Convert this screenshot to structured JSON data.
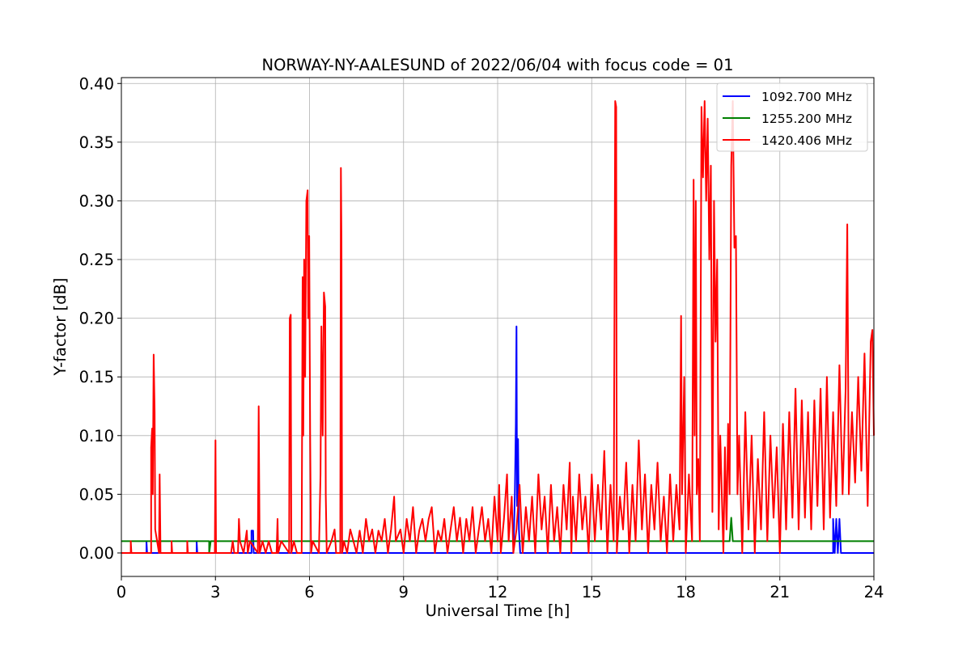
{
  "chart_data": {
    "type": "line",
    "title": "NORWAY-NY-AALESUND of 2022/06/04 with focus code = 01",
    "xlabel": "Universal Time [h]",
    "ylabel": "Y-factor [dB]",
    "xlim": [
      0,
      24
    ],
    "ylim": [
      -0.02,
      0.405
    ],
    "x_ticks": [
      0,
      3,
      6,
      9,
      12,
      15,
      18,
      21,
      24
    ],
    "x_tick_labels": [
      "0",
      "3",
      "6",
      "9",
      "12",
      "15",
      "18",
      "21",
      "24"
    ],
    "y_ticks": [
      0.0,
      0.05,
      0.1,
      0.15,
      0.2,
      0.25,
      0.3,
      0.35,
      0.4
    ],
    "y_tick_labels": [
      "0.00",
      "0.05",
      "0.10",
      "0.15",
      "0.20",
      "0.25",
      "0.30",
      "0.35",
      "0.40"
    ],
    "grid": true,
    "legend_position": "top-right",
    "series": [
      {
        "name": "1092.700 MHz",
        "color": "#0000ff",
        "points": [
          [
            0,
            0
          ],
          [
            0.8,
            0
          ],
          [
            0.8,
            0.01
          ],
          [
            0.82,
            0
          ],
          [
            1.2,
            0
          ],
          [
            1.2,
            0.01
          ],
          [
            1.22,
            0
          ],
          [
            2.4,
            0
          ],
          [
            2.4,
            0.01
          ],
          [
            2.42,
            0
          ],
          [
            4.15,
            0
          ],
          [
            4.15,
            0.019
          ],
          [
            4.2,
            0.019
          ],
          [
            4.22,
            0
          ],
          [
            12.5,
            0
          ],
          [
            12.55,
            0.05
          ],
          [
            12.58,
            0.11
          ],
          [
            12.6,
            0.193
          ],
          [
            12.62,
            0.04
          ],
          [
            12.65,
            0.097
          ],
          [
            12.68,
            0.02
          ],
          [
            12.72,
            0
          ],
          [
            22.7,
            0
          ],
          [
            22.7,
            0.029
          ],
          [
            22.75,
            0
          ],
          [
            22.8,
            0.029
          ],
          [
            22.85,
            0
          ],
          [
            22.9,
            0.029
          ],
          [
            22.95,
            0
          ],
          [
            24,
            0
          ]
        ]
      },
      {
        "name": "1255.200 MHz",
        "color": "#008000",
        "points": [
          [
            0,
            0.01
          ],
          [
            2.8,
            0.01
          ],
          [
            2.8,
            0
          ],
          [
            2.85,
            0.01
          ],
          [
            19.4,
            0.01
          ],
          [
            19.45,
            0.03
          ],
          [
            19.5,
            0.01
          ],
          [
            24,
            0.01
          ]
        ]
      },
      {
        "name": "1420.406 MHz",
        "color": "#ff0000",
        "points": [
          [
            0,
            0
          ],
          [
            0.3,
            0
          ],
          [
            0.3,
            0.01
          ],
          [
            0.32,
            0
          ],
          [
            0.95,
            0
          ],
          [
            0.95,
            0.09
          ],
          [
            0.98,
            0.106
          ],
          [
            1.0,
            0.05
          ],
          [
            1.03,
            0.169
          ],
          [
            1.06,
            0.12
          ],
          [
            1.08,
            0.02
          ],
          [
            1.2,
            0
          ],
          [
            1.22,
            0.067
          ],
          [
            1.25,
            0
          ],
          [
            1.6,
            0
          ],
          [
            1.6,
            0.01
          ],
          [
            1.62,
            0
          ],
          [
            2.1,
            0
          ],
          [
            2.1,
            0.01
          ],
          [
            2.12,
            0
          ],
          [
            2.98,
            0
          ],
          [
            3.0,
            0.096
          ],
          [
            3.02,
            0
          ],
          [
            3.5,
            0
          ],
          [
            3.55,
            0.01
          ],
          [
            3.6,
            0
          ],
          [
            3.72,
            0
          ],
          [
            3.75,
            0.029
          ],
          [
            3.78,
            0.01
          ],
          [
            3.9,
            0
          ],
          [
            4.0,
            0.019
          ],
          [
            4.03,
            0
          ],
          [
            4.1,
            0.01
          ],
          [
            4.35,
            0
          ],
          [
            4.38,
            0.125
          ],
          [
            4.41,
            0
          ],
          [
            4.5,
            0.01
          ],
          [
            4.6,
            0
          ],
          [
            4.7,
            0.01
          ],
          [
            4.8,
            0
          ],
          [
            4.95,
            0
          ],
          [
            4.98,
            0.029
          ],
          [
            5.0,
            0
          ],
          [
            5.1,
            0.01
          ],
          [
            5.35,
            0
          ],
          [
            5.37,
            0.2
          ],
          [
            5.4,
            0.203
          ],
          [
            5.42,
            0
          ],
          [
            5.5,
            0.01
          ],
          [
            5.6,
            0
          ],
          [
            5.75,
            0
          ],
          [
            5.78,
            0.235
          ],
          [
            5.8,
            0.1
          ],
          [
            5.83,
            0.25
          ],
          [
            5.86,
            0.15
          ],
          [
            5.9,
            0.3
          ],
          [
            5.94,
            0.309
          ],
          [
            5.96,
            0.2
          ],
          [
            5.99,
            0.27
          ],
          [
            6.02,
            0.1
          ],
          [
            6.05,
            0
          ],
          [
            6.1,
            0.01
          ],
          [
            6.3,
            0
          ],
          [
            6.35,
            0.067
          ],
          [
            6.38,
            0.193
          ],
          [
            6.42,
            0.1
          ],
          [
            6.46,
            0.222
          ],
          [
            6.5,
            0.21
          ],
          [
            6.52,
            0.05
          ],
          [
            6.55,
            0
          ],
          [
            6.7,
            0.01
          ],
          [
            6.8,
            0.02
          ],
          [
            6.85,
            0
          ],
          [
            6.98,
            0
          ],
          [
            7.0,
            0.328
          ],
          [
            7.02,
            0.265
          ],
          [
            7.04,
            0
          ],
          [
            7.1,
            0.01
          ],
          [
            7.2,
            0
          ],
          [
            7.3,
            0.02
          ],
          [
            7.4,
            0.01
          ],
          [
            7.5,
            0
          ],
          [
            7.6,
            0.019
          ],
          [
            7.7,
            0
          ],
          [
            7.8,
            0.029
          ],
          [
            7.9,
            0.01
          ],
          [
            8.0,
            0.02
          ],
          [
            8.1,
            0
          ],
          [
            8.2,
            0.019
          ],
          [
            8.3,
            0.01
          ],
          [
            8.4,
            0.029
          ],
          [
            8.5,
            0
          ],
          [
            8.6,
            0.02
          ],
          [
            8.7,
            0.048
          ],
          [
            8.75,
            0.01
          ],
          [
            8.9,
            0.02
          ],
          [
            9.0,
            0
          ],
          [
            9.1,
            0.029
          ],
          [
            9.2,
            0.01
          ],
          [
            9.3,
            0.039
          ],
          [
            9.4,
            0
          ],
          [
            9.5,
            0.019
          ],
          [
            9.6,
            0.029
          ],
          [
            9.7,
            0.01
          ],
          [
            9.8,
            0.029
          ],
          [
            9.9,
            0.039
          ],
          [
            10.0,
            0
          ],
          [
            10.1,
            0.019
          ],
          [
            10.2,
            0.01
          ],
          [
            10.3,
            0.029
          ],
          [
            10.4,
            0
          ],
          [
            10.5,
            0.02
          ],
          [
            10.6,
            0.039
          ],
          [
            10.7,
            0.01
          ],
          [
            10.8,
            0.03
          ],
          [
            10.9,
            0
          ],
          [
            11.0,
            0.029
          ],
          [
            11.1,
            0.01
          ],
          [
            11.2,
            0.039
          ],
          [
            11.3,
            0
          ],
          [
            11.4,
            0.02
          ],
          [
            11.5,
            0.039
          ],
          [
            11.6,
            0.01
          ],
          [
            11.7,
            0.029
          ],
          [
            11.8,
            0
          ],
          [
            11.9,
            0.048
          ],
          [
            12.0,
            0.01
          ],
          [
            12.05,
            0.058
          ],
          [
            12.1,
            0
          ],
          [
            12.2,
            0.029
          ],
          [
            12.3,
            0.067
          ],
          [
            12.35,
            0.01
          ],
          [
            12.45,
            0.048
          ],
          [
            12.5,
            0
          ],
          [
            12.6,
            0.02
          ],
          [
            12.7,
            0.058
          ],
          [
            12.8,
            0
          ],
          [
            12.9,
            0.039
          ],
          [
            13.0,
            0.01
          ],
          [
            13.1,
            0.048
          ],
          [
            13.2,
            0
          ],
          [
            13.3,
            0.067
          ],
          [
            13.4,
            0.02
          ],
          [
            13.5,
            0.048
          ],
          [
            13.6,
            0
          ],
          [
            13.7,
            0.058
          ],
          [
            13.8,
            0.01
          ],
          [
            13.9,
            0.039
          ],
          [
            14.0,
            0
          ],
          [
            14.1,
            0.058
          ],
          [
            14.2,
            0.02
          ],
          [
            14.3,
            0.077
          ],
          [
            14.35,
            0
          ],
          [
            14.4,
            0.048
          ],
          [
            14.5,
            0.01
          ],
          [
            14.6,
            0.067
          ],
          [
            14.7,
            0.02
          ],
          [
            14.8,
            0.048
          ],
          [
            14.9,
            0
          ],
          [
            15.0,
            0.067
          ],
          [
            15.1,
            0.01
          ],
          [
            15.2,
            0.058
          ],
          [
            15.3,
            0.02
          ],
          [
            15.4,
            0.087
          ],
          [
            15.5,
            0
          ],
          [
            15.6,
            0.058
          ],
          [
            15.7,
            0.01
          ],
          [
            15.75,
            0.385
          ],
          [
            15.78,
            0.38
          ],
          [
            15.8,
            0
          ],
          [
            15.9,
            0.048
          ],
          [
            16.0,
            0.02
          ],
          [
            16.1,
            0.077
          ],
          [
            16.2,
            0
          ],
          [
            16.3,
            0.058
          ],
          [
            16.4,
            0.01
          ],
          [
            16.5,
            0.096
          ],
          [
            16.6,
            0.02
          ],
          [
            16.7,
            0.067
          ],
          [
            16.8,
            0
          ],
          [
            16.9,
            0.058
          ],
          [
            17.0,
            0.02
          ],
          [
            17.1,
            0.077
          ],
          [
            17.2,
            0.01
          ],
          [
            17.3,
            0.048
          ],
          [
            17.4,
            0
          ],
          [
            17.5,
            0.067
          ],
          [
            17.6,
            0.01
          ],
          [
            17.7,
            0.058
          ],
          [
            17.8,
            0.02
          ],
          [
            17.85,
            0.202
          ],
          [
            17.88,
            0.05
          ],
          [
            17.95,
            0.15
          ],
          [
            18.0,
            0
          ],
          [
            18.1,
            0.067
          ],
          [
            18.2,
            0.01
          ],
          [
            18.25,
            0.318
          ],
          [
            18.28,
            0.1
          ],
          [
            18.32,
            0.3
          ],
          [
            18.35,
            0.05
          ],
          [
            18.4,
            0.08
          ],
          [
            18.45,
            0.01
          ],
          [
            18.5,
            0.38
          ],
          [
            18.55,
            0.32
          ],
          [
            18.6,
            0.385
          ],
          [
            18.65,
            0.3
          ],
          [
            18.7,
            0.37
          ],
          [
            18.75,
            0.25
          ],
          [
            18.8,
            0.33
          ],
          [
            18.85,
            0.035
          ],
          [
            18.9,
            0.3
          ],
          [
            18.95,
            0.18
          ],
          [
            19.0,
            0.25
          ],
          [
            19.05,
            0.02
          ],
          [
            19.1,
            0.1
          ],
          [
            19.2,
            0.0
          ],
          [
            19.25,
            0.09
          ],
          [
            19.3,
            0.02
          ],
          [
            19.35,
            0.11
          ],
          [
            19.4,
            0.05
          ],
          [
            19.45,
            0.33
          ],
          [
            19.5,
            0.385
          ],
          [
            19.55,
            0.26
          ],
          [
            19.6,
            0.27
          ],
          [
            19.65,
            0.05
          ],
          [
            19.7,
            0.1
          ],
          [
            19.8,
            0.0
          ],
          [
            19.9,
            0.12
          ],
          [
            20.0,
            0.02
          ],
          [
            20.1,
            0.1
          ],
          [
            20.2,
            0.0
          ],
          [
            20.3,
            0.08
          ],
          [
            20.4,
            0.02
          ],
          [
            20.5,
            0.12
          ],
          [
            20.6,
            0.01
          ],
          [
            20.7,
            0.1
          ],
          [
            20.8,
            0.03
          ],
          [
            20.9,
            0.09
          ],
          [
            21.0,
            0.0
          ],
          [
            21.1,
            0.11
          ],
          [
            21.2,
            0.02
          ],
          [
            21.3,
            0.12
          ],
          [
            21.4,
            0.03
          ],
          [
            21.5,
            0.14
          ],
          [
            21.6,
            0.02
          ],
          [
            21.7,
            0.13
          ],
          [
            21.8,
            0.03
          ],
          [
            21.9,
            0.12
          ],
          [
            22.0,
            0.02
          ],
          [
            22.1,
            0.13
          ],
          [
            22.2,
            0.04
          ],
          [
            22.3,
            0.14
          ],
          [
            22.4,
            0.02
          ],
          [
            22.5,
            0.15
          ],
          [
            22.6,
            0.03
          ],
          [
            22.7,
            0.12
          ],
          [
            22.8,
            0.04
          ],
          [
            22.9,
            0.16
          ],
          [
            23.0,
            0.05
          ],
          [
            23.1,
            0.14
          ],
          [
            23.15,
            0.28
          ],
          [
            23.2,
            0.05
          ],
          [
            23.3,
            0.12
          ],
          [
            23.4,
            0.06
          ],
          [
            23.5,
            0.15
          ],
          [
            23.6,
            0.07
          ],
          [
            23.7,
            0.17
          ],
          [
            23.8,
            0.04
          ],
          [
            23.9,
            0.18
          ],
          [
            23.95,
            0.19
          ],
          [
            24.0,
            0.1
          ]
        ]
      }
    ]
  }
}
